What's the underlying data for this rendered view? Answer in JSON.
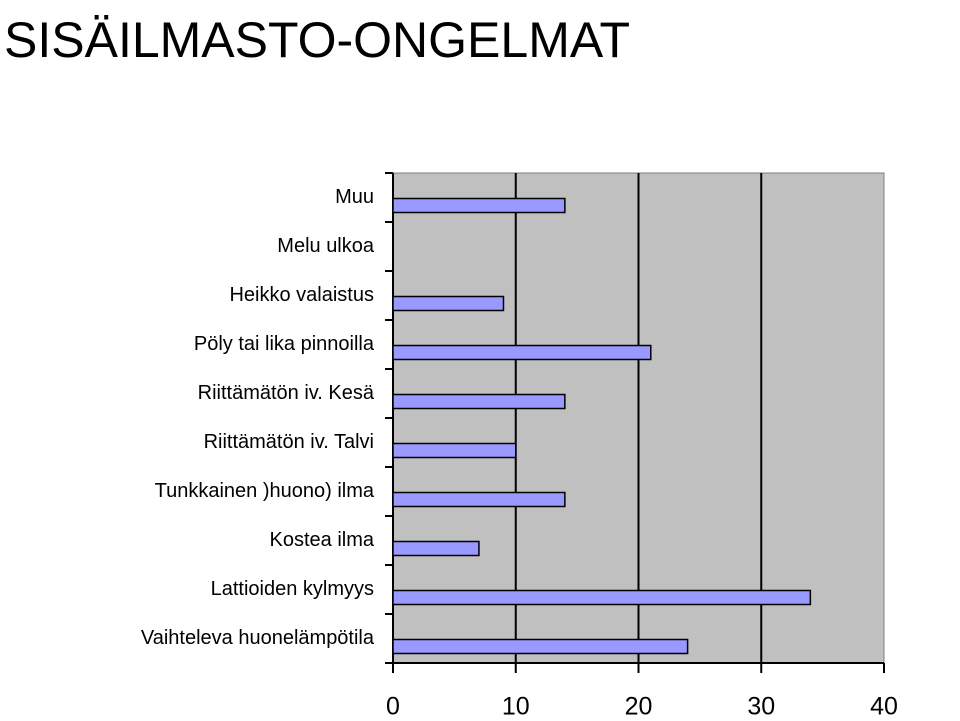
{
  "chart_data": {
    "type": "barh",
    "title": "SISÄILMASTO-ONGELMAT",
    "categories": [
      "Muu",
      "Melu ulkoa",
      "Heikko valaistus",
      "Pöly tai lika pinnoilla",
      "Riittämätön iv. Kesä",
      "Riittämätön iv. Talvi",
      "Tunkkainen )huono) ilma",
      "Kostea ilma",
      "Lattioiden kylmyys",
      "Vaihteleva huonelämpötila"
    ],
    "values": [
      14,
      0,
      9,
      21,
      14,
      10,
      14,
      7,
      34,
      24
    ],
    "color": "#9999ff",
    "xlim": [
      0,
      40
    ],
    "xticks": [
      0,
      10,
      20,
      30,
      40
    ],
    "grid": true
  }
}
